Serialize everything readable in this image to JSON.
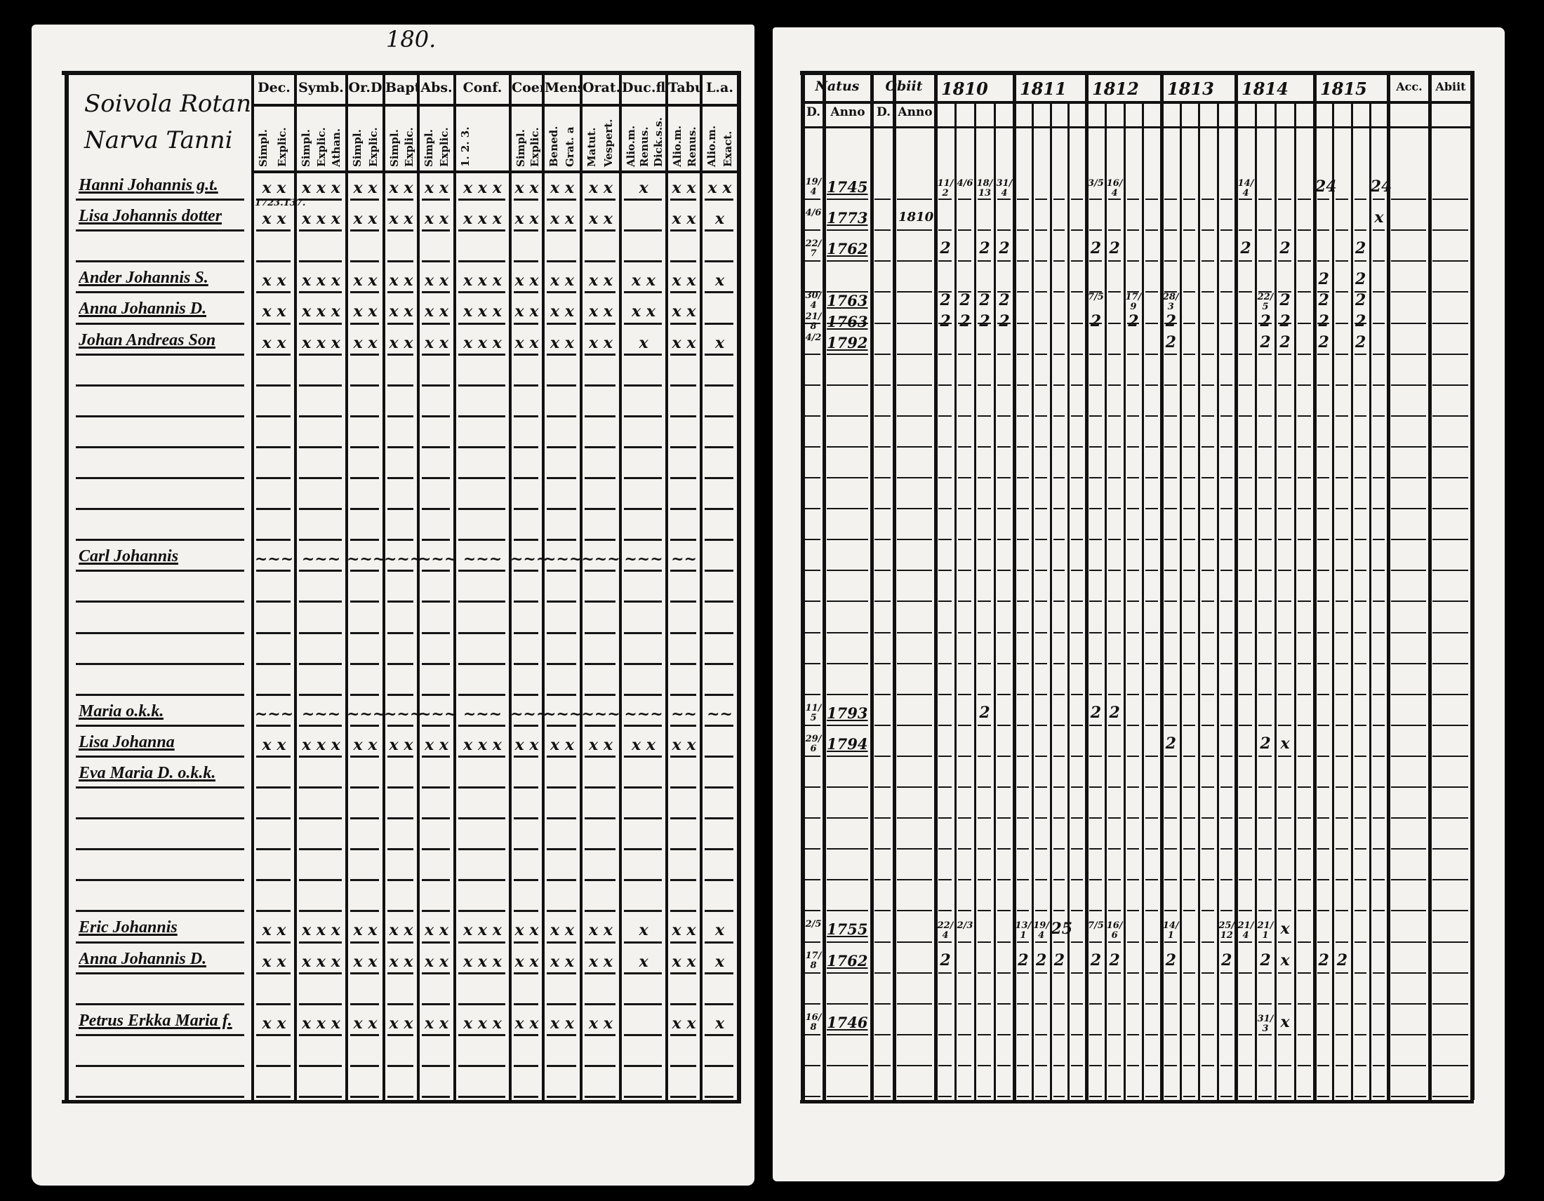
{
  "left_page": {
    "page_number": "180.",
    "village_heading": [
      "Soivola Rotan",
      "Narva Tanni"
    ],
    "columns": [
      {
        "label": "Dec.",
        "sub": [
          "Simpl.",
          "Explic."
        ]
      },
      {
        "label": "Symb.",
        "sub": [
          "Simpl.",
          "Explic.",
          "Athan."
        ]
      },
      {
        "label": "Or.D",
        "sub": [
          "Simpl.",
          "Explic."
        ]
      },
      {
        "label": "Bapt.",
        "sub": [
          "Simpl.",
          "Explic."
        ]
      },
      {
        "label": "Abs.",
        "sub": [
          "Simpl.",
          "Explic."
        ]
      },
      {
        "label": "Conf.",
        "sub": [
          "1. 2. 3."
        ]
      },
      {
        "label": "Coen.D",
        "sub": [
          "Simpl.",
          "Explic."
        ]
      },
      {
        "label": "Mens.",
        "sub": [
          "Bened.",
          "Grat. a"
        ]
      },
      {
        "label": "Orat.",
        "sub": [
          "Matut.",
          "Vespert."
        ]
      },
      {
        "label": "Duc.fl.",
        "sub": [
          "Alio.m.",
          "Renus.",
          "Dick.s.s."
        ]
      },
      {
        "label": "Tabu.",
        "sub": [
          "Alio.m.",
          "Renus."
        ]
      },
      {
        "label": "L.a.",
        "sub": [
          "Alio.m.",
          "Exact."
        ]
      }
    ],
    "persons": [
      {
        "row": 0,
        "name": "Hanni Johannis g.t.",
        "marks": [
          "x x",
          "x x x",
          "x x",
          "x x",
          "x x",
          "x x x",
          "x x",
          "x x",
          "x x",
          "x",
          "x x",
          "x x"
        ]
      },
      {
        "row": 1,
        "name": "Lisa Johannis dotter",
        "note": "1723.137.",
        "marks": [
          "x x",
          "x x x",
          "x x",
          "x x",
          "x x",
          "x x x",
          "x x",
          "x x",
          "x x",
          "",
          "x x",
          "x"
        ]
      },
      {
        "row": 3,
        "name": "Ander Johannis S.",
        "marks": [
          "x x",
          "x x x",
          "x x",
          "x x",
          "x x",
          "x x x",
          "x x",
          "x x",
          "x x",
          "x x",
          "x x",
          "x"
        ]
      },
      {
        "row": 4,
        "name": "Anna Johannis D.",
        "marks": [
          "x x",
          "x x x",
          "x x",
          "x x",
          "x x",
          "x x x",
          "x x",
          "x x",
          "x x",
          "x x",
          "x x",
          ""
        ]
      },
      {
        "row": 5,
        "name": "Johan Andreas Son",
        "marks": [
          "x x",
          "x x x",
          "x x",
          "x x",
          "x x",
          "x x x",
          "x x",
          "x x",
          "x x",
          "x",
          "x x",
          "x"
        ]
      },
      {
        "row": 12,
        "name": "Carl Johannis",
        "marks": [
          "~~~",
          "~~~",
          "~~~",
          "~~~",
          "~~~",
          "~~~",
          "~~~",
          "~~~",
          "~~~",
          "~~~",
          "~~",
          ""
        ]
      },
      {
        "row": 17,
        "name": "Maria   o.k.k.",
        "marks": [
          "~~~",
          "~~~",
          "~~~",
          "~~~",
          "~~~",
          "~~~",
          "~~~",
          "~~~",
          "~~~",
          "~~~",
          "~~",
          "~~"
        ]
      },
      {
        "row": 18,
        "name": "Lisa Johanna",
        "marks": [
          "x x",
          "x x x",
          "x x",
          "x x",
          "x x",
          "x x x",
          "x x",
          "x x",
          "x x",
          "x x",
          "x x",
          ""
        ]
      },
      {
        "row": 19,
        "name": "Eva Maria D. o.k.k.",
        "marks": [
          "",
          "",
          "",
          "",
          "",
          "",
          "",
          "",
          "",
          "",
          "",
          ""
        ]
      },
      {
        "row": 24,
        "name": "Eric Johannis",
        "marks": [
          "x x",
          "x x x",
          "x x",
          "x x",
          "x x",
          "x x x",
          "x x",
          "x x",
          "x x",
          "x",
          "x x",
          "x"
        ]
      },
      {
        "row": 25,
        "name": "Anna Johannis D.",
        "marks": [
          "x x",
          "x x x",
          "x x",
          "x x",
          "x x",
          "x x x",
          "x x",
          "x x",
          "x x",
          "x",
          "x x",
          "x"
        ]
      },
      {
        "row": 27,
        "name": "Petrus Erkka Maria f.",
        "marks": [
          "x x",
          "x x x",
          "x x",
          "x x",
          "x x",
          "x x x",
          "x x",
          "x x",
          "x x",
          "",
          "x x",
          "x"
        ]
      }
    ]
  },
  "right_page": {
    "headers": {
      "natus": "Natus",
      "obiit": "Obiit",
      "d": "D.",
      "anno": "Anno",
      "accessit": "Acc.",
      "abiit": "Abiit"
    },
    "years": [
      "1810",
      "1811",
      "1812",
      "1813",
      "1814",
      "1815"
    ],
    "rows": [
      {
        "row": 0,
        "natus_d": "19/4",
        "natus_anno": "1745",
        "obiit_anno": "",
        "marks": [
          "11/2",
          "4/6",
          "18/13",
          "31/4",
          "",
          "",
          "",
          "",
          "3/5",
          "16/4",
          "",
          "",
          "",
          "",
          "",
          "",
          "14/4",
          "",
          "",
          "",
          "24",
          "",
          "",
          "24"
        ]
      },
      {
        "row": 1,
        "natus_d": "4/6",
        "natus_anno": "1773",
        "obiit_anno": "1810",
        "marks": [
          "",
          "",
          "",
          "",
          "",
          "",
          "",
          "",
          "",
          "",
          "",
          "",
          "",
          "",
          "",
          "",
          "",
          "",
          "",
          "",
          "",
          "",
          "",
          "x"
        ]
      },
      {
        "row": 2,
        "natus_d": "22/7",
        "natus_anno": "1762",
        "obiit_anno": "",
        "marks": [
          "2",
          "",
          "2",
          "2",
          "",
          "",
          "",
          "",
          "2",
          "2",
          "",
          "",
          "",
          "",
          "",
          "",
          "2",
          "",
          "2",
          "",
          "",
          "",
          "2",
          ""
        ]
      },
      {
        "row": 3,
        "natus_d": "",
        "natus_anno": "",
        "obiit_anno": "",
        "marks": [
          "",
          "",
          "",
          "",
          "",
          "",
          "",
          "",
          "",
          "",
          "",
          "",
          "",
          "",
          "",
          "",
          "",
          "",
          "",
          "",
          "2",
          "",
          "2",
          ""
        ]
      },
      {
        "row": 3.2,
        "natus_d": "30/4",
        "natus_anno": "1763",
        "obiit_anno": "",
        "marks": [
          "2",
          "2",
          "2",
          "2",
          "",
          "",
          "",
          "",
          "7/5",
          "",
          "17/9",
          "",
          "28/3",
          "",
          "",
          "",
          "",
          "22/5",
          "2",
          "",
          "2",
          "",
          "2",
          ""
        ]
      },
      {
        "row": 4.1,
        "natus_d": "21/8",
        "natus_anno": "1763",
        "obiit_anno": "",
        "marks": [
          "2",
          "2",
          "2",
          "2",
          "",
          "",
          "",
          "",
          "2",
          "",
          "2",
          "",
          "2",
          "",
          "",
          "",
          "",
          "2",
          "2",
          "",
          "2",
          "",
          "2",
          ""
        ]
      },
      {
        "row": 5,
        "natus_d": "4/2",
        "natus_anno": "1792",
        "obiit_anno": "",
        "marks": [
          "",
          "",
          "",
          "",
          "",
          "",
          "",
          "",
          "",
          "",
          "",
          "",
          "2",
          "",
          "",
          "",
          "",
          "2",
          "2",
          "",
          "2",
          "",
          "2",
          ""
        ]
      },
      {
        "row": 17,
        "natus_d": "11/5",
        "natus_anno": "1793",
        "obiit_anno": "",
        "marks": [
          "",
          "",
          "2",
          "",
          "",
          "",
          "",
          "",
          "2",
          "2",
          "",
          "",
          "",
          "",
          "",
          "",
          "",
          "",
          "",
          "",
          "",
          "",
          "",
          ""
        ]
      },
      {
        "row": 18,
        "natus_d": "29/6",
        "natus_anno": "1794",
        "obiit_anno": "",
        "marks": [
          "",
          "",
          "",
          "",
          "",
          "",
          "",
          "",
          "",
          "",
          "",
          "",
          "2",
          "",
          "",
          "",
          "",
          "2",
          "x",
          "",
          "",
          "",
          "",
          ""
        ]
      },
      {
        "row": 24,
        "natus_d": "2/5",
        "natus_anno": "1755",
        "obiit_anno": "",
        "marks": [
          "22/4",
          "2/3",
          "",
          "",
          "13/1",
          "19/4",
          "25",
          "",
          "7/5",
          "16/6",
          "",
          "",
          "14/1",
          "",
          "",
          "25/12",
          "21/4",
          "21/1",
          "x",
          "",
          "",
          "",
          "",
          ""
        ]
      },
      {
        "row": 25,
        "natus_d": "17/8",
        "natus_anno": "1762",
        "obiit_anno": "",
        "marks": [
          "2",
          "",
          "",
          "",
          "2",
          "2",
          "2",
          "",
          "2",
          "2",
          "",
          "",
          "2",
          "",
          "",
          "2",
          "",
          "2",
          "x",
          "",
          "2",
          "2",
          "",
          ""
        ]
      },
      {
        "row": 27,
        "natus_d": "16/8",
        "natus_anno": "1746",
        "obiit_anno": "",
        "marks": [
          "",
          "",
          "",
          "",
          "",
          "",
          "",
          "",
          "",
          "",
          "",
          "",
          "",
          "",
          "",
          "",
          "",
          "31/3",
          "x",
          "",
          "",
          "",
          "",
          ""
        ]
      }
    ]
  }
}
